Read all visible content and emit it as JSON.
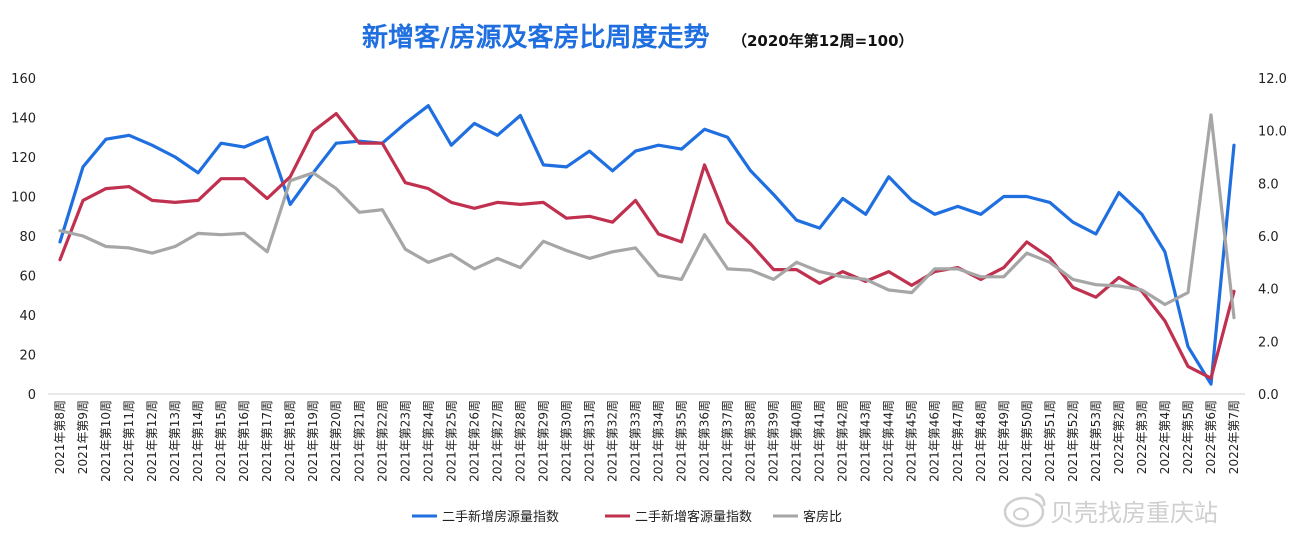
{
  "chart_data": {
    "type": "line",
    "title": "新增客/房源及客房比周度走势",
    "subtitle": "（2020年第12周=100）",
    "y_left_ticks": [
      "0",
      "20",
      "40",
      "60",
      "80",
      "100",
      "120",
      "140",
      "160"
    ],
    "y_left_lim": [
      0,
      160
    ],
    "y_right_ticks": [
      "0.0",
      "2.0",
      "4.0",
      "6.0",
      "8.0",
      "10.0",
      "12.0"
    ],
    "y_right_lim": [
      0,
      12
    ],
    "categories": [
      "2021年第8周",
      "2021年第9周",
      "2021年第10周",
      "2021年第11周",
      "2021年第12周",
      "2021年第13周",
      "2021年第14周",
      "2021年第15周",
      "2021年第16周",
      "2021年第17周",
      "2021年第18周",
      "2021年第19周",
      "2021年第20周",
      "2021年第21周",
      "2021年第22周",
      "2021年第23周",
      "2021年第24周",
      "2021年第25周",
      "2021年第26周",
      "2021年第27周",
      "2021年第28周",
      "2021年第29周",
      "2021年第30周",
      "2021年第31周",
      "2021年第32周",
      "2021年第33周",
      "2021年第34周",
      "2021年第35周",
      "2021年第36周",
      "2021年第37周",
      "2021年第38周",
      "2021年第39周",
      "2021年第40周",
      "2021年第41周",
      "2021年第42周",
      "2021年第43周",
      "2021年第44周",
      "2021年第45周",
      "2021年第46周",
      "2021年第47周",
      "2021年第48周",
      "2021年第49周",
      "2021年第50周",
      "2021年第51周",
      "2021年第52周",
      "2021年第53周",
      "2022年第2周",
      "2022年第3周",
      "2022年第4周",
      "2022年第5周",
      "2022年第6周",
      "2022年第7周"
    ],
    "series": [
      {
        "name": "二手新增房源量指数",
        "axis": "left",
        "color": "#1f6fe0",
        "values": [
          77,
          115,
          129,
          131,
          126,
          120,
          112,
          127,
          125,
          130,
          96,
          112,
          127,
          128,
          127,
          137,
          146,
          126,
          137,
          131,
          141,
          116,
          115,
          123,
          113,
          123,
          126,
          124,
          134,
          130,
          113,
          101,
          88,
          84,
          99,
          91,
          110,
          98,
          91,
          95,
          91,
          100,
          100,
          97,
          87,
          81,
          102,
          91,
          72,
          24,
          5,
          126
        ]
      },
      {
        "name": "二手新增客源量指数",
        "axis": "left",
        "color": "#c0304f",
        "values": [
          68,
          98,
          104,
          105,
          98,
          97,
          98,
          109,
          109,
          99,
          110,
          133,
          142,
          127,
          127,
          107,
          104,
          97,
          94,
          97,
          96,
          97,
          89,
          90,
          87,
          98,
          81,
          77,
          116,
          87,
          76,
          63,
          63,
          56,
          62,
          57,
          62,
          55,
          62,
          64,
          58,
          64,
          77,
          69,
          54,
          49,
          59,
          52,
          37,
          14,
          8,
          52
        ]
      },
      {
        "name": "客房比",
        "axis": "right",
        "color": "#a6a6a6",
        "values": [
          6.2,
          6.0,
          5.6,
          5.55,
          5.35,
          5.6,
          6.1,
          6.05,
          6.1,
          5.4,
          8.1,
          8.4,
          7.8,
          6.9,
          7.0,
          5.5,
          5.0,
          5.3,
          4.75,
          5.15,
          4.8,
          5.8,
          5.45,
          5.15,
          5.4,
          5.55,
          4.5,
          4.35,
          6.05,
          4.75,
          4.7,
          4.35,
          5.0,
          4.65,
          4.45,
          4.35,
          3.95,
          3.85,
          4.75,
          4.75,
          4.45,
          4.45,
          5.35,
          5.0,
          4.35,
          4.15,
          4.1,
          3.95,
          3.4,
          3.85,
          10.6,
          2.9
        ]
      }
    ],
    "legend_position": "bottom",
    "grid": false
  },
  "watermark": "贝壳找房重庆站"
}
